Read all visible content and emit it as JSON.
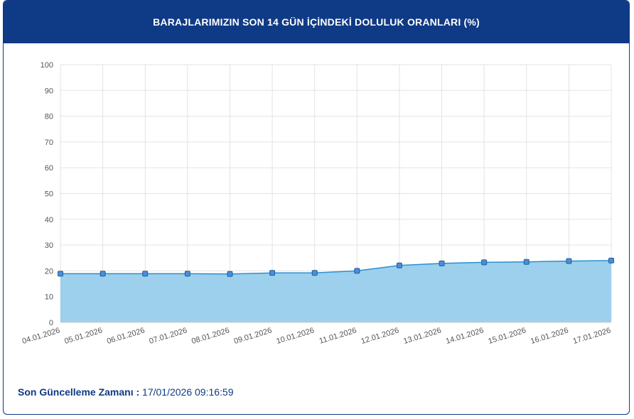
{
  "header": {
    "title": "BARAJLARIMIZIN SON 14 GÜN İÇİNDEKİ DOLULUK ORANLARI (%)"
  },
  "footer": {
    "label": "Son Güncelleme Zamanı :",
    "value": "17/01/2026 09:16:59"
  },
  "colors": {
    "header_bg": "#0f3a85",
    "line": "#2a8fd0",
    "fill": "#9dd0ec",
    "marker_fill": "#4a8fd6",
    "marker_stroke": "#1f5c9e",
    "grid": "#e3e3e3"
  },
  "chart_data": {
    "type": "area",
    "title": "BARAJLARIMIZIN SON 14 GÜN İÇİNDEKİ DOLULUK ORANLARI (%)",
    "categories": [
      "04.01.2026",
      "05.01.2026",
      "06.01.2026",
      "07.01.2026",
      "08.01.2026",
      "09.01.2026",
      "10.01.2026",
      "11.01.2026",
      "12.01.2026",
      "13.01.2026",
      "14.01.2026",
      "15.01.2026",
      "16.01.2026",
      "17.01.2026"
    ],
    "values": [
      18.9,
      18.9,
      18.9,
      18.9,
      18.8,
      19.2,
      19.2,
      20.0,
      22.1,
      22.9,
      23.3,
      23.5,
      23.8,
      24.0
    ],
    "yticks": [
      0,
      10,
      20,
      30,
      40,
      50,
      60,
      70,
      80,
      90,
      100
    ],
    "ylim": [
      0,
      100
    ],
    "grid": true
  }
}
